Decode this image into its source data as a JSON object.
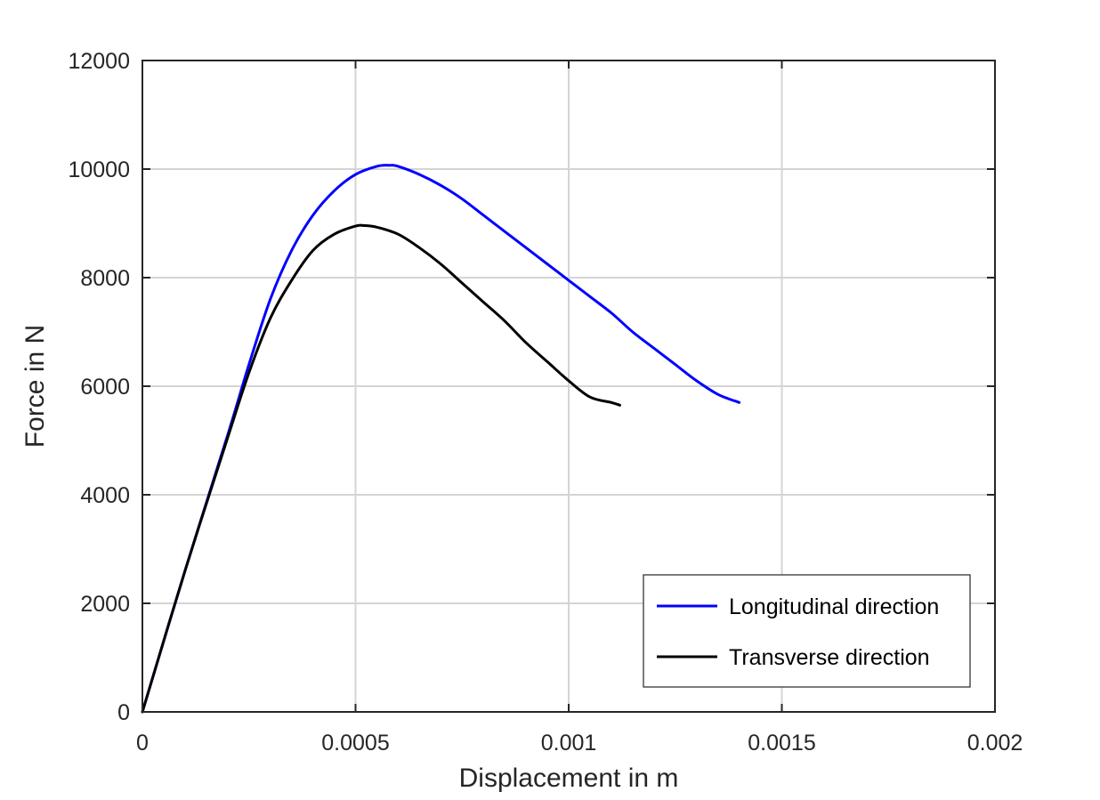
{
  "chart_data": {
    "type": "line",
    "xlabel": "Displacement in m",
    "ylabel": "Force in N",
    "xlim": [
      0,
      0.002
    ],
    "ylim": [
      0,
      12000
    ],
    "xticks": [
      0,
      0.0005,
      0.001,
      0.0015,
      0.002
    ],
    "xtick_labels": [
      "0",
      "0.0005",
      "0.001",
      "0.0015",
      "0.002"
    ],
    "yticks": [
      0,
      2000,
      4000,
      6000,
      8000,
      10000,
      12000
    ],
    "ytick_labels": [
      "0",
      "2000",
      "4000",
      "6000",
      "8000",
      "10000",
      "12000"
    ],
    "grid": true,
    "legend_position": "bottom-right",
    "series": [
      {
        "name": "Longitudinal direction",
        "color": "#0000ff",
        "x": [
          0,
          0.0001,
          0.0002,
          0.00025,
          0.0003,
          0.00035,
          0.0004,
          0.00045,
          0.0005,
          0.00055,
          0.00058,
          0.0006,
          0.00065,
          0.0007,
          0.00075,
          0.0008,
          0.00085,
          0.0009,
          0.00095,
          0.001,
          0.00105,
          0.0011,
          0.00115,
          0.0012,
          0.00125,
          0.0013,
          0.00135,
          0.0014
        ],
        "y": [
          0,
          2600,
          5100,
          6400,
          7600,
          8500,
          9150,
          9600,
          9900,
          10050,
          10070,
          10050,
          9900,
          9700,
          9450,
          9150,
          8850,
          8550,
          8250,
          7950,
          7650,
          7350,
          7000,
          6700,
          6400,
          6100,
          5850,
          5700
        ]
      },
      {
        "name": "Transverse direction",
        "color": "#000000",
        "x": [
          0,
          0.0001,
          0.0002,
          0.00025,
          0.0003,
          0.00035,
          0.0004,
          0.00045,
          0.0005,
          0.00052,
          0.00055,
          0.0006,
          0.00065,
          0.0007,
          0.00075,
          0.0008,
          0.00085,
          0.0009,
          0.00095,
          0.001,
          0.00105,
          0.0011,
          0.00112
        ],
        "y": [
          0,
          2600,
          5050,
          6250,
          7250,
          7950,
          8500,
          8800,
          8950,
          8960,
          8930,
          8800,
          8550,
          8250,
          7900,
          7550,
          7200,
          6800,
          6450,
          6100,
          5800,
          5700,
          5650
        ]
      }
    ]
  }
}
